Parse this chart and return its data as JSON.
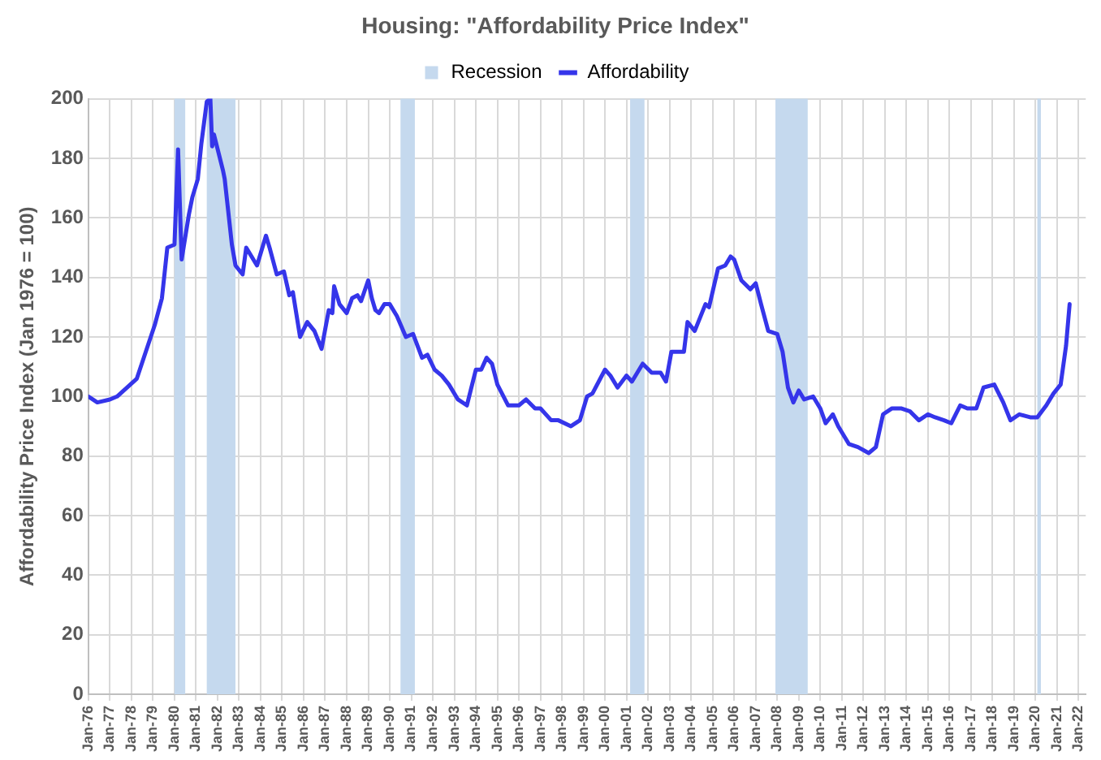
{
  "chart_data": {
    "type": "line",
    "title": "Housing: \"Affordability Price Index\"",
    "ylabel": "Affordability Price Index (Jan 1976 = 100)",
    "x": [
      "1976-01",
      "1976-06",
      "1977-01",
      "1977-05",
      "1978-04",
      "1979-02",
      "1979-06",
      "1979-09",
      "1980-01",
      "1980-03",
      "1980-05",
      "1980-09",
      "1980-11",
      "1981-02",
      "1981-04",
      "1981-07",
      "1981-09",
      "1981-10",
      "1981-11",
      "1982-04",
      "1982-05",
      "1982-09",
      "1982-11",
      "1983-03",
      "1983-05",
      "1983-11",
      "1984-04",
      "1984-06",
      "1984-10",
      "1985-02",
      "1985-05",
      "1985-07",
      "1985-11",
      "1986-03",
      "1986-07",
      "1986-11",
      "1987-03",
      "1987-05",
      "1987-06",
      "1987-09",
      "1988-01",
      "1988-04",
      "1988-07",
      "1988-09",
      "1989-01",
      "1989-03",
      "1989-05",
      "1989-07",
      "1989-10",
      "1990-01",
      "1990-05",
      "1990-10",
      "1991-02",
      "1991-07",
      "1991-10",
      "1992-02",
      "1992-06",
      "1992-10",
      "1993-03",
      "1993-08",
      "1994-01",
      "1994-04",
      "1994-07",
      "1994-10",
      "1995-01",
      "1995-07",
      "1996-01",
      "1996-05",
      "1996-10",
      "1997-01",
      "1997-07",
      "1997-11",
      "1998-06",
      "1998-11",
      "1999-03",
      "1999-06",
      "2000-01",
      "2000-04",
      "2000-08",
      "2001-01",
      "2001-04",
      "2001-10",
      "2002-03",
      "2002-08",
      "2002-11",
      "2003-02",
      "2003-09",
      "2003-11",
      "2004-03",
      "2004-09",
      "2004-11",
      "2005-04",
      "2005-08",
      "2005-11",
      "2006-01",
      "2006-05",
      "2006-10",
      "2007-01",
      "2007-04",
      "2007-08",
      "2008-01",
      "2008-04",
      "2008-07",
      "2008-10",
      "2009-01",
      "2009-04",
      "2009-09",
      "2010-01",
      "2010-04",
      "2010-08",
      "2010-11",
      "2011-05",
      "2011-10",
      "2012-04",
      "2012-08",
      "2012-12",
      "2013-05",
      "2013-10",
      "2014-03",
      "2014-08",
      "2015-01",
      "2015-05",
      "2015-10",
      "2016-02",
      "2016-07",
      "2016-11",
      "2017-04",
      "2017-08",
      "2018-02",
      "2018-07",
      "2018-11",
      "2019-04",
      "2019-10",
      "2020-02",
      "2020-07",
      "2020-11",
      "2021-03",
      "2021-06",
      "2021-08"
    ],
    "series": [
      {
        "name": "Affordability",
        "color": "#3535ea",
        "values": [
          100,
          98,
          99,
          100,
          106,
          124,
          133,
          150,
          151,
          183,
          146,
          161,
          167,
          173,
          185,
          199,
          200,
          184,
          188,
          176,
          173,
          151,
          144,
          141,
          150,
          144,
          154,
          150,
          141,
          142,
          134,
          135,
          120,
          125,
          122,
          116,
          129,
          128,
          137,
          131,
          128,
          133,
          134,
          132,
          139,
          133,
          129,
          128,
          131,
          131,
          127,
          120,
          121,
          113,
          114,
          109,
          107,
          104,
          99,
          97,
          109,
          109,
          113,
          111,
          104,
          97,
          97,
          99,
          96,
          96,
          92,
          92,
          90,
          92,
          100,
          101,
          109,
          107,
          103,
          107,
          105,
          111,
          108,
          108,
          105,
          115,
          115,
          125,
          122,
          131,
          130,
          143,
          144,
          147,
          146,
          139,
          136,
          138,
          131,
          122,
          121,
          115,
          103,
          98,
          102,
          99,
          100,
          96,
          91,
          94,
          90,
          84,
          83,
          81,
          83,
          94,
          96,
          96,
          95,
          92,
          94,
          93,
          92,
          91,
          97,
          96,
          96,
          103,
          104,
          98,
          92,
          94,
          93,
          93,
          97,
          101,
          104,
          117,
          131
        ]
      }
    ],
    "bands": [
      {
        "axis": "x",
        "from": "1980-01",
        "to": "1980-07",
        "label": "Recession",
        "color": "#c5d9ee"
      },
      {
        "axis": "x",
        "from": "1981-07",
        "to": "1982-11",
        "color": "#c5d9ee"
      },
      {
        "axis": "x",
        "from": "1990-07",
        "to": "1991-03",
        "color": "#c5d9ee"
      },
      {
        "axis": "x",
        "from": "2001-03",
        "to": "2001-11",
        "color": "#c5d9ee"
      },
      {
        "axis": "x",
        "from": "2007-12",
        "to": "2009-06",
        "color": "#c5d9ee"
      },
      {
        "axis": "x",
        "from": "2020-02",
        "to": "2020-04",
        "color": "#c5d9ee"
      }
    ],
    "xlim": [
      "1976-01",
      "2022-05"
    ],
    "xticks": [
      {
        "value": "1976-01",
        "label": "Jan-76"
      },
      {
        "value": "1977-01",
        "label": "Jan-77"
      },
      {
        "value": "1978-01",
        "label": "Jan-78"
      },
      {
        "value": "1979-01",
        "label": "Jan-79"
      },
      {
        "value": "1980-01",
        "label": "Jan-80"
      },
      {
        "value": "1981-01",
        "label": "Jan-81"
      },
      {
        "value": "1982-01",
        "label": "Jan-82"
      },
      {
        "value": "1983-01",
        "label": "Jan-83"
      },
      {
        "value": "1984-01",
        "label": "Jan-84"
      },
      {
        "value": "1985-01",
        "label": "Jan-85"
      },
      {
        "value": "1986-01",
        "label": "Jan-86"
      },
      {
        "value": "1987-01",
        "label": "Jan-87"
      },
      {
        "value": "1988-01",
        "label": "Jan-88"
      },
      {
        "value": "1989-01",
        "label": "Jan-89"
      },
      {
        "value": "1990-01",
        "label": "Jan-90"
      },
      {
        "value": "1991-01",
        "label": "Jan-91"
      },
      {
        "value": "1992-01",
        "label": "Jan-92"
      },
      {
        "value": "1993-01",
        "label": "Jan-93"
      },
      {
        "value": "1994-01",
        "label": "Jan-94"
      },
      {
        "value": "1995-01",
        "label": "Jan-95"
      },
      {
        "value": "1996-01",
        "label": "Jan-96"
      },
      {
        "value": "1997-01",
        "label": "Jan-97"
      },
      {
        "value": "1998-01",
        "label": "Jan-98"
      },
      {
        "value": "1999-01",
        "label": "Jan-99"
      },
      {
        "value": "2000-01",
        "label": "Jan-00"
      },
      {
        "value": "2001-01",
        "label": "Jan-01"
      },
      {
        "value": "2002-01",
        "label": "Jan-02"
      },
      {
        "value": "2003-01",
        "label": "Jan-03"
      },
      {
        "value": "2004-01",
        "label": "Jan-04"
      },
      {
        "value": "2005-01",
        "label": "Jan-05"
      },
      {
        "value": "2006-01",
        "label": "Jan-06"
      },
      {
        "value": "2007-01",
        "label": "Jan-07"
      },
      {
        "value": "2008-01",
        "label": "Jan-08"
      },
      {
        "value": "2009-01",
        "label": "Jan-09"
      },
      {
        "value": "2010-01",
        "label": "Jan-10"
      },
      {
        "value": "2011-01",
        "label": "Jan-11"
      },
      {
        "value": "2012-01",
        "label": "Jan-12"
      },
      {
        "value": "2013-01",
        "label": "Jan-13"
      },
      {
        "value": "2014-01",
        "label": "Jan-14"
      },
      {
        "value": "2015-01",
        "label": "Jan-15"
      },
      {
        "value": "2016-01",
        "label": "Jan-16"
      },
      {
        "value": "2017-01",
        "label": "Jan-17"
      },
      {
        "value": "2018-01",
        "label": "Jan-18"
      },
      {
        "value": "2019-01",
        "label": "Jan-19"
      },
      {
        "value": "2020-01",
        "label": "Jan-20"
      },
      {
        "value": "2021-01",
        "label": "Jan-21"
      },
      {
        "value": "2022-01",
        "label": "Jan-22"
      }
    ],
    "ylim": [
      0,
      200
    ],
    "yticks": [
      0,
      20,
      40,
      60,
      80,
      100,
      120,
      140,
      160,
      180,
      200
    ],
    "grid": true,
    "legend": "top",
    "marker": "none",
    "line_style": "solid"
  }
}
